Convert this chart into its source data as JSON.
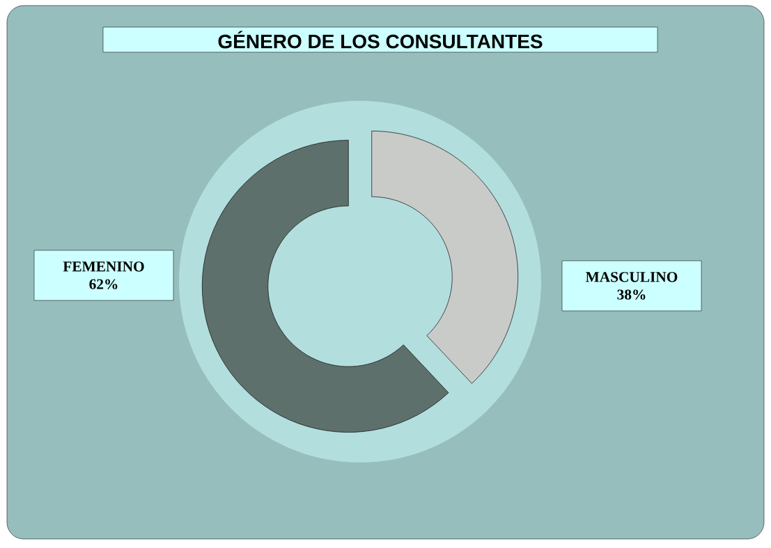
{
  "chart_data": {
    "type": "donut",
    "title": "GÉNERO DE LOS CONSULTANTES",
    "categories": [
      "FEMENINO",
      "MASCULINO"
    ],
    "values": [
      62,
      38
    ],
    "colors": [
      "#5e706c",
      "#c9cbc8"
    ],
    "value_labels": [
      "62%",
      "38%"
    ]
  }
}
